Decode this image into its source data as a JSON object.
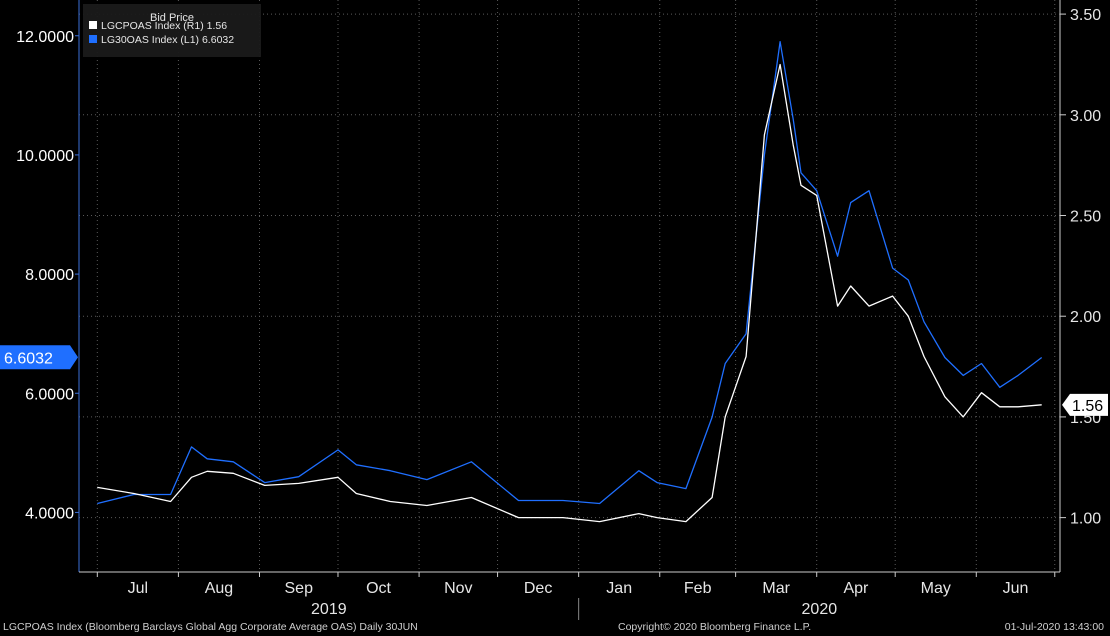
{
  "chart_data": {
    "type": "line",
    "legend": {
      "title": "Bid Price",
      "placement": "top-left",
      "entries": [
        {
          "label": "LGCPOAS Index  (R1) 1.56",
          "color": "#ffffff"
        },
        {
          "label": "LG30OAS Index  (L1) 6.6032",
          "color": "#1f6fff"
        }
      ]
    },
    "x_months": [
      "Jul",
      "Aug",
      "Sep",
      "Oct",
      "Nov",
      "Dec",
      "Jan",
      "Feb",
      "Mar",
      "Apr",
      "May",
      "Jun"
    ],
    "x_years": [
      "2019",
      "2020"
    ],
    "y_left": {
      "ticks": [
        "4.0000",
        "6.0000",
        "8.0000",
        "10.0000",
        "12.0000"
      ],
      "range": [
        3.0,
        12.6
      ]
    },
    "y_right": {
      "ticks": [
        "1.00",
        "1.50",
        "2.00",
        "2.50",
        "3.00",
        "3.50"
      ],
      "range": [
        0.73,
        3.57
      ]
    },
    "last_value_labels": {
      "left": "6.6032",
      "right": "1.56"
    },
    "series": [
      {
        "name": "LG30OAS Index",
        "axis": "left",
        "color": "#1f6fff",
        "x": [
          "2019-07-01",
          "2019-07-15",
          "2019-07-29",
          "2019-08-06",
          "2019-08-12",
          "2019-08-22",
          "2019-09-03",
          "2019-09-16",
          "2019-10-01",
          "2019-10-08",
          "2019-10-21",
          "2019-11-04",
          "2019-11-21",
          "2019-12-09",
          "2019-12-26",
          "2020-01-09",
          "2020-01-24",
          "2020-01-31",
          "2020-02-11",
          "2020-02-21",
          "2020-02-26",
          "2020-03-05",
          "2020-03-12",
          "2020-03-18",
          "2020-03-23",
          "2020-03-26",
          "2020-04-01",
          "2020-04-09",
          "2020-04-14",
          "2020-04-21",
          "2020-04-30",
          "2020-05-06",
          "2020-05-12",
          "2020-05-20",
          "2020-05-27",
          "2020-06-03",
          "2020-06-10",
          "2020-06-17",
          "2020-06-26"
        ],
        "y": [
          4.15,
          4.3,
          4.3,
          5.1,
          4.9,
          4.85,
          4.5,
          4.6,
          5.05,
          4.8,
          4.7,
          4.55,
          4.85,
          4.2,
          4.2,
          4.15,
          4.7,
          4.5,
          4.4,
          5.6,
          6.5,
          7.0,
          10.0,
          11.9,
          10.6,
          9.7,
          9.4,
          8.3,
          9.2,
          9.4,
          8.1,
          7.9,
          7.2,
          6.6,
          6.3,
          6.5,
          6.1,
          6.3,
          6.6
        ]
      },
      {
        "name": "LGCPOAS Index",
        "axis": "right",
        "color": "#ffffff",
        "x": [
          "2019-07-01",
          "2019-07-15",
          "2019-07-29",
          "2019-08-06",
          "2019-08-12",
          "2019-08-22",
          "2019-09-03",
          "2019-09-16",
          "2019-10-01",
          "2019-10-08",
          "2019-10-21",
          "2019-11-04",
          "2019-11-21",
          "2019-12-09",
          "2019-12-26",
          "2020-01-09",
          "2020-01-24",
          "2020-01-31",
          "2020-02-11",
          "2020-02-21",
          "2020-02-26",
          "2020-03-05",
          "2020-03-12",
          "2020-03-18",
          "2020-03-23",
          "2020-03-26",
          "2020-04-01",
          "2020-04-09",
          "2020-04-14",
          "2020-04-21",
          "2020-04-30",
          "2020-05-06",
          "2020-05-12",
          "2020-05-20",
          "2020-05-27",
          "2020-06-03",
          "2020-06-10",
          "2020-06-17",
          "2020-06-26"
        ],
        "y": [
          1.15,
          1.12,
          1.08,
          1.2,
          1.23,
          1.22,
          1.16,
          1.17,
          1.2,
          1.12,
          1.08,
          1.06,
          1.1,
          1.0,
          1.0,
          0.98,
          1.02,
          1.0,
          0.98,
          1.1,
          1.5,
          1.8,
          2.9,
          3.25,
          2.85,
          2.65,
          2.6,
          2.05,
          2.15,
          2.05,
          2.1,
          2.0,
          1.8,
          1.6,
          1.5,
          1.62,
          1.55,
          1.55,
          1.56
        ]
      }
    ],
    "grid": true
  },
  "footer": {
    "left": "LGCPOAS Index (Bloomberg Barclays Global Agg Corporate Average OAS)  Daily 30JUN",
    "middle": "Copyright© 2020 Bloomberg Finance L.P.",
    "right": "01-Jul-2020 13:43:00"
  }
}
